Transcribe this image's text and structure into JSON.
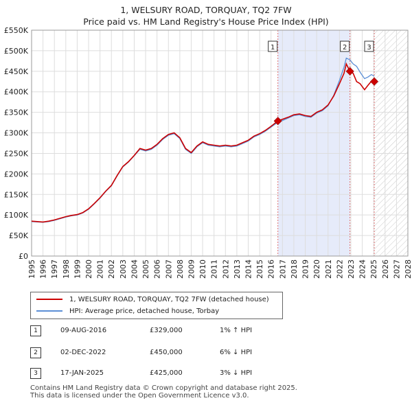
{
  "title_line1": "1, WELSURY ROAD, TORQUAY, TQ2 7FW",
  "title_line2": "Price paid vs. HM Land Registry's House Price Index (HPI)",
  "colors": {
    "property": "#cc0000",
    "hpi": "#5b8fd6",
    "shade": "#e6ebfa",
    "marker_line": "#e07070"
  },
  "chart_data": {
    "type": "line",
    "title": "1, WELSURY ROAD, TORQUAY, TQ2 7FW — Price paid vs. HM Land Registry's House Price Index (HPI)",
    "xlabel": "",
    "ylabel": "",
    "xlim": [
      1995,
      2028
    ],
    "ylim": [
      0,
      550000
    ],
    "yticks": [
      0,
      50000,
      100000,
      150000,
      200000,
      250000,
      300000,
      350000,
      400000,
      450000,
      500000,
      550000
    ],
    "ytick_labels": [
      "£0",
      "£50K",
      "£100K",
      "£150K",
      "£200K",
      "£250K",
      "£300K",
      "£350K",
      "£400K",
      "£450K",
      "£500K",
      "£550K"
    ],
    "xticks": [
      1995,
      1996,
      1997,
      1998,
      1999,
      2000,
      2001,
      2002,
      2003,
      2004,
      2005,
      2006,
      2007,
      2008,
      2009,
      2010,
      2011,
      2012,
      2013,
      2014,
      2015,
      2016,
      2017,
      2018,
      2019,
      2020,
      2021,
      2022,
      2023,
      2024,
      2025,
      2026,
      2027,
      2028
    ],
    "grid": true,
    "shaded_region": [
      2016.6,
      2022.92
    ],
    "hatched_region": [
      2025.05,
      2028
    ],
    "series": [
      {
        "name": "1, WELSURY ROAD, TORQUAY, TQ2 7FW (detached house)",
        "x": [
          1995.0,
          1995.5,
          1996.0,
          1996.5,
          1997.0,
          1997.5,
          1998.0,
          1998.5,
          1999.0,
          1999.5,
          2000.0,
          2000.5,
          2001.0,
          2001.5,
          2002.0,
          2002.5,
          2003.0,
          2003.5,
          2004.0,
          2004.5,
          2005.0,
          2005.5,
          2006.0,
          2006.5,
          2007.0,
          2007.5,
          2008.0,
          2008.5,
          2009.0,
          2009.5,
          2010.0,
          2010.5,
          2011.0,
          2011.5,
          2012.0,
          2012.5,
          2013.0,
          2013.5,
          2014.0,
          2014.5,
          2015.0,
          2015.5,
          2016.0,
          2016.6,
          2017.0,
          2017.5,
          2018.0,
          2018.5,
          2019.0,
          2019.5,
          2020.0,
          2020.5,
          2021.0,
          2021.5,
          2022.0,
          2022.4,
          2022.6,
          2022.92,
          2023.2,
          2023.5,
          2023.8,
          2024.2,
          2024.5,
          2024.8,
          2025.05
        ],
        "y": [
          85000,
          84000,
          83000,
          85000,
          88000,
          92000,
          96000,
          99000,
          101000,
          106000,
          115000,
          128000,
          142000,
          158000,
          172000,
          196000,
          218000,
          230000,
          245000,
          262000,
          258000,
          262000,
          272000,
          286000,
          296000,
          300000,
          288000,
          262000,
          252000,
          268000,
          278000,
          272000,
          270000,
          268000,
          270000,
          268000,
          270000,
          276000,
          282000,
          292000,
          298000,
          306000,
          316000,
          329000,
          333000,
          338000,
          344000,
          346000,
          342000,
          340000,
          350000,
          356000,
          368000,
          390000,
          420000,
          445000,
          468000,
          450000,
          445000,
          425000,
          420000,
          405000,
          416000,
          426000,
          425000
        ]
      },
      {
        "name": "HPI: Average price, detached house, Torbay",
        "x": [
          1995.0,
          1995.5,
          1996.0,
          1996.5,
          1997.0,
          1997.5,
          1998.0,
          1998.5,
          1999.0,
          1999.5,
          2000.0,
          2000.5,
          2001.0,
          2001.5,
          2002.0,
          2002.5,
          2003.0,
          2003.5,
          2004.0,
          2004.5,
          2005.0,
          2005.5,
          2006.0,
          2006.5,
          2007.0,
          2007.5,
          2008.0,
          2008.5,
          2009.0,
          2009.5,
          2010.0,
          2010.5,
          2011.0,
          2011.5,
          2012.0,
          2012.5,
          2013.0,
          2013.5,
          2014.0,
          2014.5,
          2015.0,
          2015.5,
          2016.0,
          2016.6,
          2017.0,
          2017.5,
          2018.0,
          2018.5,
          2019.0,
          2019.5,
          2020.0,
          2020.5,
          2021.0,
          2021.5,
          2022.0,
          2022.4,
          2022.6,
          2022.92,
          2023.2,
          2023.5,
          2023.8,
          2024.2,
          2024.5,
          2024.8,
          2025.05
        ],
        "y": [
          84000,
          83000,
          82000,
          84000,
          87000,
          91000,
          95000,
          98000,
          100000,
          105000,
          114000,
          127000,
          141000,
          157000,
          171000,
          195000,
          217000,
          229000,
          244000,
          260000,
          256000,
          260000,
          270000,
          284000,
          294000,
          298000,
          286000,
          260000,
          250000,
          266000,
          276000,
          270000,
          268000,
          266000,
          268000,
          266000,
          268000,
          274000,
          280000,
          290000,
          296000,
          304000,
          314000,
          326000,
          330000,
          336000,
          342000,
          344000,
          340000,
          338000,
          348000,
          354000,
          366000,
          392000,
          428000,
          460000,
          482000,
          478000,
          468000,
          462000,
          448000,
          432000,
          436000,
          442000,
          438000
        ]
      }
    ],
    "annotations": [
      {
        "label": "1",
        "x": 2016.6,
        "y": 329000
      },
      {
        "label": "2",
        "x": 2022.92,
        "y": 450000
      },
      {
        "label": "3",
        "x": 2025.05,
        "y": 425000
      }
    ]
  },
  "legend": {
    "property_label": "1, WELSURY ROAD, TORQUAY, TQ2 7FW (detached house)",
    "hpi_label": "HPI: Average price, detached house, Torbay"
  },
  "sales": [
    {
      "num": "1",
      "date": "09-AUG-2016",
      "price": "£329,000",
      "hpi": "1% ↑ HPI"
    },
    {
      "num": "2",
      "date": "02-DEC-2022",
      "price": "£450,000",
      "hpi": "6% ↓ HPI"
    },
    {
      "num": "3",
      "date": "17-JAN-2025",
      "price": "£425,000",
      "hpi": "3% ↓ HPI"
    }
  ],
  "footer": {
    "line1": "Contains HM Land Registry data © Crown copyright and database right 2025.",
    "line2": "This data is licensed under the Open Government Licence v3.0."
  }
}
